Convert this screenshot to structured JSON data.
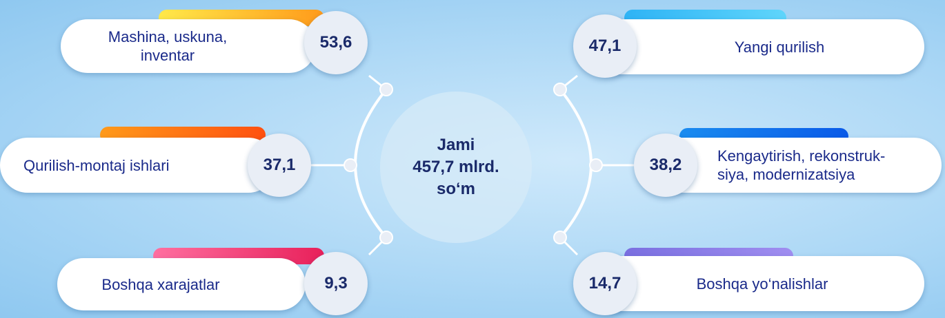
{
  "center": {
    "lines": [
      "Jami",
      "457,7 mlrd.",
      "so‘m"
    ]
  },
  "items": [
    {
      "label": [
        "Mashina, uskuna,",
        "inventar"
      ],
      "value": "53,6"
    },
    {
      "label": [
        "Qurilish-montaj ishlari"
      ],
      "value": "37,1"
    },
    {
      "label": [
        "Boshqa xarajatlar"
      ],
      "value": "9,3"
    },
    {
      "label": [
        "Yangi qurilish"
      ],
      "value": "47,1"
    },
    {
      "label": [
        "Kengaytirish, rekonstruk-",
        "siya, modernizatsiya"
      ],
      "value": "38,2"
    },
    {
      "label": [
        "Boshqa yo‘nalishlar"
      ],
      "value": "14,7"
    }
  ]
}
